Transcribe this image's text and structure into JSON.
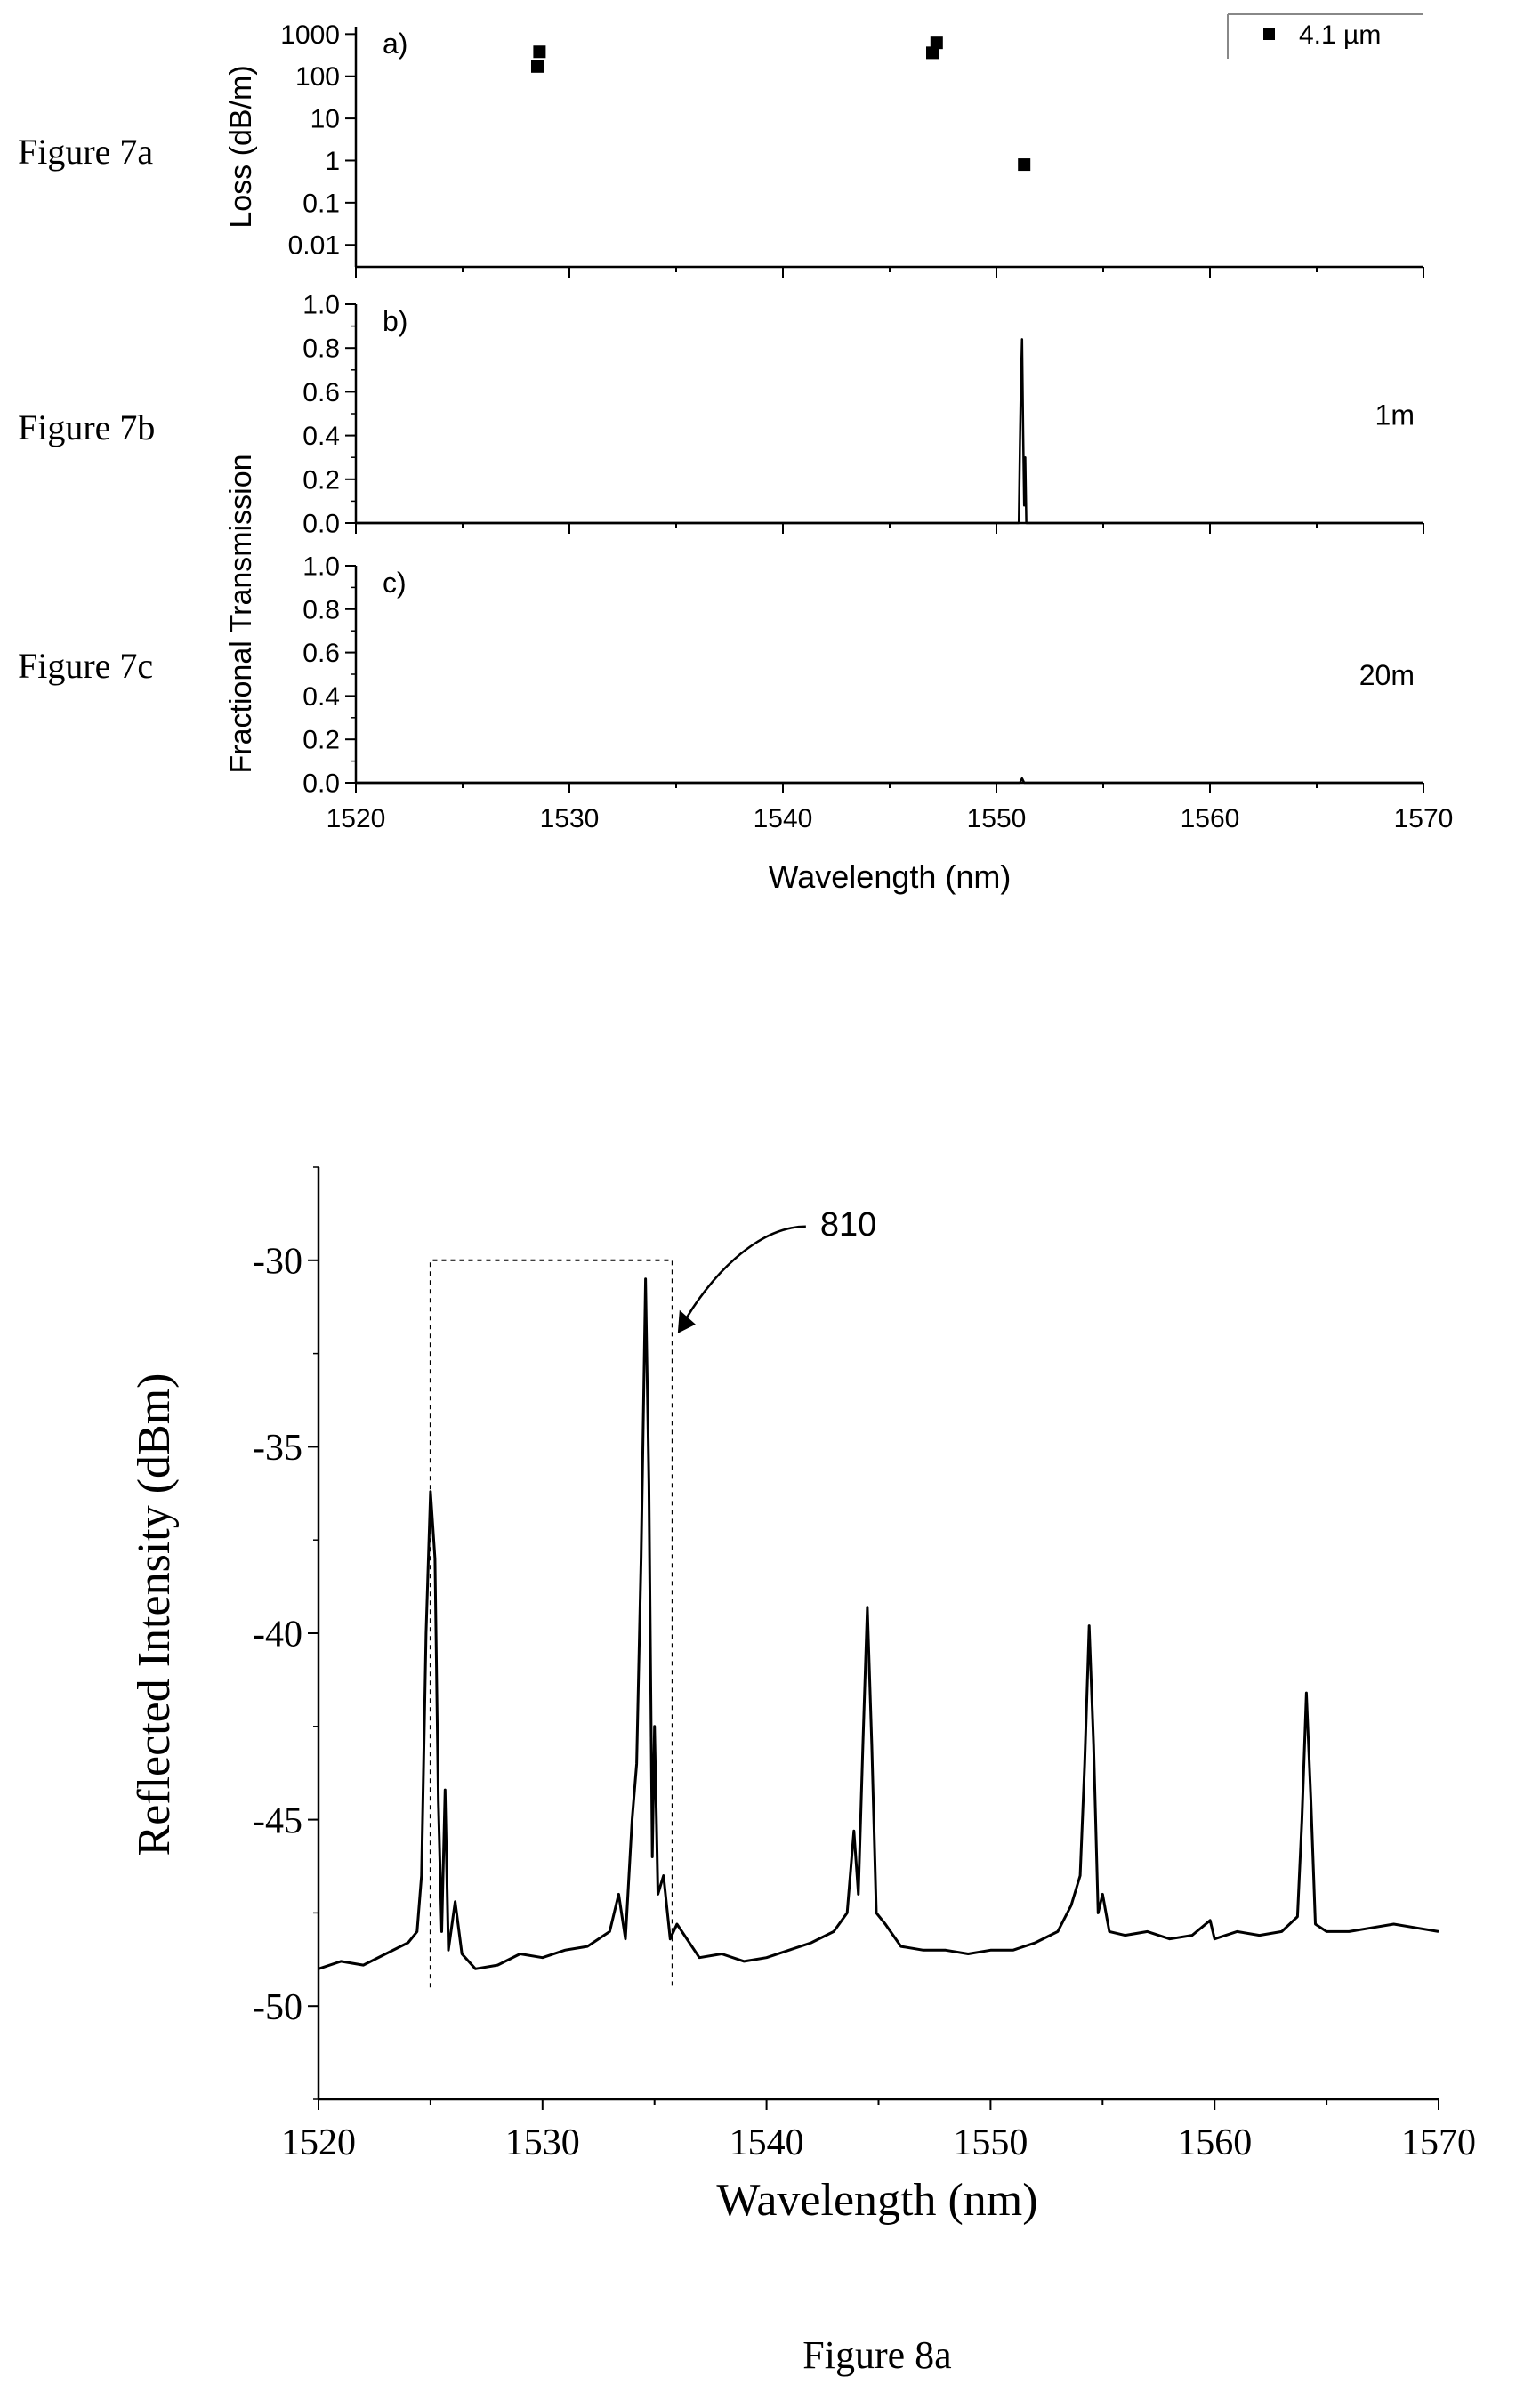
{
  "figure_labels": {
    "fig7a": "Figure 7a",
    "fig7b": "Figure 7b",
    "fig7c": "Figure 7c",
    "fig8a": "Figure 8a"
  },
  "chart_data": [
    {
      "id": "fig7a",
      "type": "scatter",
      "panel_label": "a)",
      "xlabel": "",
      "ylabel": "Loss (dB/m)",
      "yscale": "log",
      "xlim": [
        1520,
        1570
      ],
      "ylim": [
        0.003,
        1500
      ],
      "y_ticks": [
        1000,
        100,
        10,
        1,
        0.1,
        0.01
      ],
      "y_tick_labels": [
        "1000",
        "100",
        "10",
        "1",
        "0.1",
        "0.01"
      ],
      "legend": {
        "position": "top-right",
        "entries": [
          "4.1 µm"
        ]
      },
      "series": [
        {
          "name": "4.1 µm",
          "color": "#000000",
          "marker": "square",
          "points": [
            {
              "x": 1528.6,
              "y": 380
            },
            {
              "x": 1528.5,
              "y": 170
            },
            {
              "x": 1547.2,
              "y": 620
            },
            {
              "x": 1547.0,
              "y": 360
            },
            {
              "x": 1551.3,
              "y": 0.8
            }
          ]
        }
      ]
    },
    {
      "id": "fig7b",
      "type": "line",
      "panel_label": "b)",
      "annotation": "1m",
      "xlabel": "",
      "ylabel": "",
      "xlim": [
        1520,
        1570
      ],
      "ylim": [
        0,
        1.0
      ],
      "y_ticks": [
        0.0,
        0.2,
        0.4,
        0.6,
        0.8,
        1.0
      ],
      "y_tick_labels": [
        "0.0",
        "0.2",
        "0.4",
        "0.6",
        "0.8",
        "1.0"
      ],
      "series": [
        {
          "color": "#000000",
          "points": [
            {
              "x": 1520,
              "y": 0
            },
            {
              "x": 1551.05,
              "y": 0
            },
            {
              "x": 1551.1,
              "y": 0.35
            },
            {
              "x": 1551.15,
              "y": 0.65
            },
            {
              "x": 1551.2,
              "y": 0.84
            },
            {
              "x": 1551.25,
              "y": 0.42
            },
            {
              "x": 1551.3,
              "y": 0.08
            },
            {
              "x": 1551.35,
              "y": 0.3
            },
            {
              "x": 1551.4,
              "y": 0
            },
            {
              "x": 1570,
              "y": 0
            }
          ]
        }
      ]
    },
    {
      "id": "fig7c",
      "type": "line",
      "panel_label": "c)",
      "annotation": "20m",
      "xlabel": "Wavelength (nm)",
      "ylabel": "Fractional Transmission",
      "xlim": [
        1520,
        1570
      ],
      "ylim": [
        0,
        1.0
      ],
      "x_ticks": [
        1520,
        1530,
        1540,
        1550,
        1560,
        1570
      ],
      "x_tick_labels": [
        "1520",
        "1530",
        "1540",
        "1550",
        "1560",
        "1570"
      ],
      "y_ticks": [
        0.0,
        0.2,
        0.4,
        0.6,
        0.8,
        1.0
      ],
      "y_tick_labels": [
        "0.0",
        "0.2",
        "0.4",
        "0.6",
        "0.8",
        "1.0"
      ],
      "series": [
        {
          "color": "#000000",
          "points": [
            {
              "x": 1520,
              "y": 0
            },
            {
              "x": 1551.1,
              "y": 0
            },
            {
              "x": 1551.2,
              "y": 0.02
            },
            {
              "x": 1551.3,
              "y": 0
            },
            {
              "x": 1570,
              "y": 0
            }
          ]
        }
      ]
    },
    {
      "id": "fig8a",
      "type": "line",
      "xlabel": "Wavelength (nm)",
      "ylabel": "Reflected Intensity (dBm)",
      "xlim": [
        1520,
        1570
      ],
      "ylim": [
        -52.5,
        -27.5
      ],
      "x_ticks": [
        1520,
        1530,
        1540,
        1550,
        1560,
        1570
      ],
      "x_tick_labels": [
        "1520",
        "1530",
        "1540",
        "1550",
        "1560",
        "1570"
      ],
      "y_ticks": [
        -30,
        -35,
        -40,
        -45,
        -50
      ],
      "y_tick_labels": [
        "-30",
        "-35",
        "-40",
        "-45",
        "-50"
      ],
      "annotation": {
        "label": "810",
        "box_x": [
          1525.0,
          1535.8
        ],
        "box_y": [
          -49.5,
          -30.0
        ]
      },
      "series": [
        {
          "color": "#000000",
          "points": [
            {
              "x": 1520,
              "y": -49.0
            },
            {
              "x": 1521,
              "y": -48.8
            },
            {
              "x": 1522,
              "y": -48.9
            },
            {
              "x": 1523,
              "y": -48.6
            },
            {
              "x": 1524,
              "y": -48.3
            },
            {
              "x": 1524.4,
              "y": -48.0
            },
            {
              "x": 1524.6,
              "y": -46.5
            },
            {
              "x": 1524.8,
              "y": -40.0
            },
            {
              "x": 1525.0,
              "y": -36.2
            },
            {
              "x": 1525.2,
              "y": -38.0
            },
            {
              "x": 1525.35,
              "y": -44.5
            },
            {
              "x": 1525.5,
              "y": -48.0
            },
            {
              "x": 1525.65,
              "y": -44.2
            },
            {
              "x": 1525.8,
              "y": -48.5
            },
            {
              "x": 1526.1,
              "y": -47.2
            },
            {
              "x": 1526.4,
              "y": -48.6
            },
            {
              "x": 1527,
              "y": -49.0
            },
            {
              "x": 1528,
              "y": -48.9
            },
            {
              "x": 1529,
              "y": -48.6
            },
            {
              "x": 1530,
              "y": -48.7
            },
            {
              "x": 1531,
              "y": -48.5
            },
            {
              "x": 1532,
              "y": -48.4
            },
            {
              "x": 1533,
              "y": -48.0
            },
            {
              "x": 1533.4,
              "y": -47.0
            },
            {
              "x": 1533.7,
              "y": -48.2
            },
            {
              "x": 1534.0,
              "y": -45.0
            },
            {
              "x": 1534.2,
              "y": -43.5
            },
            {
              "x": 1534.4,
              "y": -38.0
            },
            {
              "x": 1534.6,
              "y": -30.5
            },
            {
              "x": 1534.75,
              "y": -36.0
            },
            {
              "x": 1534.9,
              "y": -46.0
            },
            {
              "x": 1535.0,
              "y": -42.5
            },
            {
              "x": 1535.15,
              "y": -47.0
            },
            {
              "x": 1535.4,
              "y": -46.5
            },
            {
              "x": 1535.7,
              "y": -48.2
            },
            {
              "x": 1536,
              "y": -47.8
            },
            {
              "x": 1537,
              "y": -48.7
            },
            {
              "x": 1538,
              "y": -48.6
            },
            {
              "x": 1539,
              "y": -48.8
            },
            {
              "x": 1540,
              "y": -48.7
            },
            {
              "x": 1541,
              "y": -48.5
            },
            {
              "x": 1542,
              "y": -48.3
            },
            {
              "x": 1543,
              "y": -48.0
            },
            {
              "x": 1543.6,
              "y": -47.5
            },
            {
              "x": 1543.9,
              "y": -45.3
            },
            {
              "x": 1544.1,
              "y": -47.0
            },
            {
              "x": 1544.3,
              "y": -43.0
            },
            {
              "x": 1544.5,
              "y": -39.3
            },
            {
              "x": 1544.7,
              "y": -43.0
            },
            {
              "x": 1544.9,
              "y": -47.5
            },
            {
              "x": 1545.3,
              "y": -47.8
            },
            {
              "x": 1546,
              "y": -48.4
            },
            {
              "x": 1547,
              "y": -48.5
            },
            {
              "x": 1548,
              "y": -48.5
            },
            {
              "x": 1549,
              "y": -48.6
            },
            {
              "x": 1550,
              "y": -48.5
            },
            {
              "x": 1551,
              "y": -48.5
            },
            {
              "x": 1552,
              "y": -48.3
            },
            {
              "x": 1553,
              "y": -48.0
            },
            {
              "x": 1553.6,
              "y": -47.3
            },
            {
              "x": 1554.0,
              "y": -46.5
            },
            {
              "x": 1554.2,
              "y": -43.5
            },
            {
              "x": 1554.4,
              "y": -39.8
            },
            {
              "x": 1554.6,
              "y": -43.0
            },
            {
              "x": 1554.8,
              "y": -47.5
            },
            {
              "x": 1555.0,
              "y": -47.0
            },
            {
              "x": 1555.3,
              "y": -48.0
            },
            {
              "x": 1556,
              "y": -48.1
            },
            {
              "x": 1557,
              "y": -48.0
            },
            {
              "x": 1558,
              "y": -48.2
            },
            {
              "x": 1559,
              "y": -48.1
            },
            {
              "x": 1559.8,
              "y": -47.7
            },
            {
              "x": 1560,
              "y": -48.2
            },
            {
              "x": 1561,
              "y": -48.0
            },
            {
              "x": 1562,
              "y": -48.1
            },
            {
              "x": 1563,
              "y": -48.0
            },
            {
              "x": 1563.7,
              "y": -47.6
            },
            {
              "x": 1563.9,
              "y": -45.0
            },
            {
              "x": 1564.1,
              "y": -41.6
            },
            {
              "x": 1564.3,
              "y": -44.5
            },
            {
              "x": 1564.5,
              "y": -47.8
            },
            {
              "x": 1565,
              "y": -48.0
            },
            {
              "x": 1566,
              "y": -48.0
            },
            {
              "x": 1567,
              "y": -47.9
            },
            {
              "x": 1568,
              "y": -47.8
            },
            {
              "x": 1569,
              "y": -47.9
            },
            {
              "x": 1570,
              "y": -48.0
            }
          ]
        }
      ]
    }
  ]
}
